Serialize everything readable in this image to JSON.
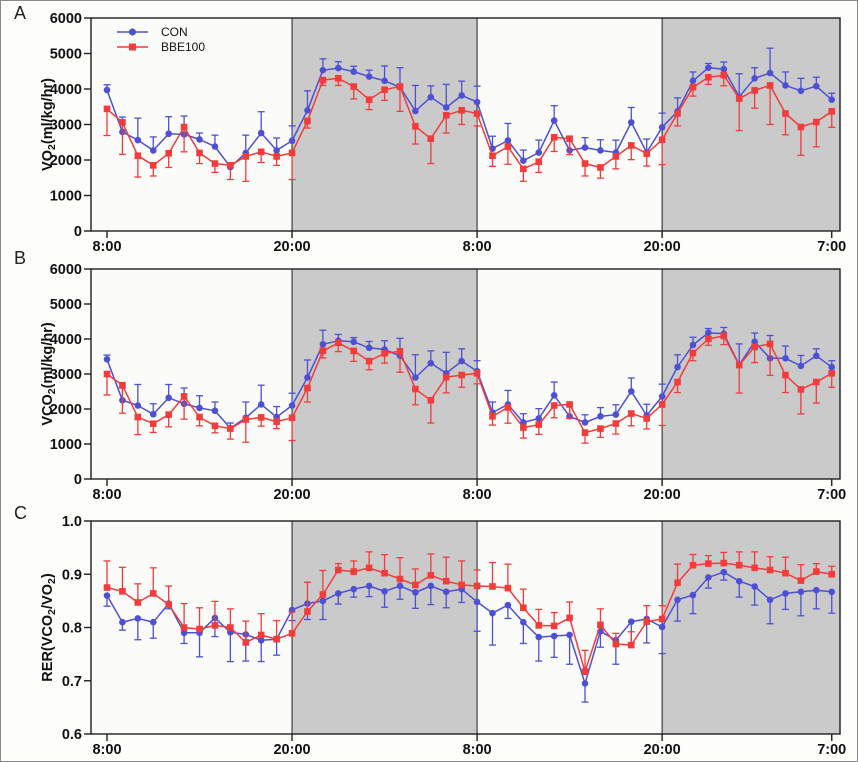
{
  "style": {
    "light_bg": "#fbfbf9",
    "dark_bg": "#cacaca",
    "axis_color": "#1f1f1f",
    "con_color": "#4d50d3",
    "bbe_color": "#f23b3b"
  },
  "chart_data": [
    {
      "type": "line",
      "panel_label": "A",
      "ylabel": "VO2(ml/kg/hr)",
      "ylabel_parts": [
        {
          "text": "VO"
        },
        {
          "text": "2",
          "sub": true
        },
        {
          "text": "(ml/kg/hr)"
        }
      ],
      "xlabel": "",
      "ylim": [
        0,
        6000
      ],
      "yticks": [
        {
          "v": 0,
          "label": "0"
        },
        {
          "v": 1000,
          "label": "1000"
        },
        {
          "v": 2000,
          "label": "2000"
        },
        {
          "v": 3000,
          "label": "3000"
        },
        {
          "v": 4000,
          "label": "4000"
        },
        {
          "v": 5000,
          "label": "5000"
        },
        {
          "v": 6000,
          "label": "6000"
        }
      ],
      "xticks": [
        {
          "hour": 0,
          "label": "8:00"
        },
        {
          "hour": 12,
          "label": "20:00"
        },
        {
          "hour": 24,
          "label": "8:00"
        },
        {
          "hour": 36,
          "label": "20:00"
        },
        {
          "hour": 47,
          "label": "7:00"
        }
      ],
      "hours_total": 47,
      "dark_periods": [
        [
          12,
          24
        ],
        [
          36,
          48
        ]
      ],
      "legend": {
        "show": true,
        "position": "top-left",
        "entries": [
          "CON",
          "BBE100"
        ]
      },
      "series": [
        {
          "name": "CON",
          "marker": "circle",
          "err_dir": "up",
          "values": [
            3970,
            2790,
            2560,
            2270,
            2740,
            2720,
            2580,
            2380,
            1800,
            2200,
            2760,
            2270,
            2540,
            3400,
            4530,
            4590,
            4490,
            4350,
            4230,
            4050,
            3380,
            3770,
            3480,
            3820,
            3630,
            2320,
            2550,
            1980,
            2210,
            3110,
            2270,
            2350,
            2270,
            2210,
            3060,
            2210,
            2920,
            3370,
            4230,
            4600,
            4560,
            3780,
            4300,
            4450,
            4100,
            3950,
            4080,
            3700
          ],
          "err": [
            150,
            420,
            620,
            380,
            480,
            520,
            180,
            320,
            120,
            500,
            600,
            350,
            420,
            550,
            320,
            180,
            150,
            180,
            420,
            550,
            720,
            320,
            650,
            400,
            450,
            350,
            480,
            300,
            350,
            420,
            380,
            280,
            300,
            350,
            420,
            380,
            400,
            380,
            250,
            120,
            200,
            650,
            300,
            700,
            380,
            350,
            250,
            180
          ]
        },
        {
          "name": "BBE100",
          "marker": "square",
          "err_dir": "down",
          "values": [
            3440,
            3060,
            2120,
            1850,
            2190,
            2930,
            2200,
            1900,
            1850,
            2100,
            2230,
            2100,
            2200,
            3100,
            4250,
            4300,
            4070,
            3700,
            3980,
            4070,
            2950,
            2600,
            3260,
            3400,
            3310,
            2120,
            2380,
            1750,
            1950,
            2640,
            2600,
            1900,
            1790,
            2100,
            2410,
            2180,
            2570,
            3310,
            4050,
            4330,
            4390,
            3730,
            3960,
            4100,
            3310,
            2930,
            3070,
            3370
          ],
          "err": [
            750,
            900,
            600,
            300,
            400,
            700,
            300,
            250,
            400,
            700,
            300,
            250,
            750,
            200,
            150,
            200,
            350,
            280,
            300,
            700,
            500,
            700,
            500,
            400,
            350,
            300,
            500,
            350,
            300,
            400,
            450,
            350,
            300,
            350,
            400,
            350,
            700,
            350,
            250,
            200,
            300,
            900,
            500,
            1100,
            600,
            800,
            700,
            450
          ]
        }
      ]
    },
    {
      "type": "line",
      "panel_label": "B",
      "ylabel": "VCO2(ml/kg/hr)",
      "ylabel_parts": [
        {
          "text": "VCO"
        },
        {
          "text": "2",
          "sub": true
        },
        {
          "text": "(ml/kg/hr)"
        }
      ],
      "xlabel": "",
      "ylim": [
        0,
        6000
      ],
      "yticks": [
        {
          "v": 0,
          "label": "0"
        },
        {
          "v": 1000,
          "label": "1000"
        },
        {
          "v": 2000,
          "label": "2000"
        },
        {
          "v": 3000,
          "label": "3000"
        },
        {
          "v": 4000,
          "label": "4000"
        },
        {
          "v": 5000,
          "label": "5000"
        },
        {
          "v": 6000,
          "label": "6000"
        }
      ],
      "xticks": [
        {
          "hour": 0,
          "label": "8:00"
        },
        {
          "hour": 12,
          "label": "20:00"
        },
        {
          "hour": 24,
          "label": "8:00"
        },
        {
          "hour": 36,
          "label": "20:00"
        },
        {
          "hour": 47,
          "label": "7:00"
        }
      ],
      "hours_total": 47,
      "dark_periods": [
        [
          12,
          24
        ],
        [
          36,
          48
        ]
      ],
      "legend": {
        "show": false
      },
      "series": [
        {
          "name": "CON",
          "marker": "circle",
          "err_dir": "up",
          "values": [
            3420,
            2250,
            2100,
            1850,
            2320,
            2150,
            2030,
            1950,
            1450,
            1750,
            2130,
            1770,
            2100,
            2900,
            3850,
            3950,
            3920,
            3750,
            3700,
            3520,
            2900,
            3310,
            3020,
            3370,
            3080,
            1900,
            2130,
            1615,
            1730,
            2390,
            1790,
            1615,
            1790,
            1840,
            2505,
            1815,
            2360,
            3200,
            3830,
            4180,
            4150,
            3260,
            3920,
            3450,
            3450,
            3230,
            3520,
            3200
          ],
          "err": [
            120,
            350,
            600,
            300,
            380,
            450,
            350,
            250,
            150,
            450,
            550,
            300,
            350,
            500,
            400,
            180,
            120,
            180,
            250,
            500,
            650,
            350,
            600,
            350,
            300,
            300,
            400,
            250,
            280,
            380,
            300,
            220,
            250,
            280,
            380,
            320,
            350,
            350,
            220,
            120,
            180,
            600,
            250,
            650,
            350,
            300,
            200,
            180
          ]
        },
        {
          "name": "BBE100",
          "marker": "square",
          "err_dir": "down",
          "values": [
            3000,
            2680,
            1770,
            1580,
            1840,
            2360,
            1770,
            1520,
            1440,
            1700,
            1760,
            1640,
            1750,
            2600,
            3660,
            3890,
            3660,
            3370,
            3590,
            3650,
            2570,
            2250,
            2910,
            2970,
            3020,
            1790,
            2045,
            1470,
            1555,
            2100,
            2130,
            1325,
            1440,
            1585,
            1870,
            1730,
            2130,
            2770,
            3600,
            4000,
            4090,
            3255,
            3775,
            3860,
            2970,
            2560,
            2770,
            3020
          ],
          "err": [
            600,
            800,
            500,
            250,
            350,
            650,
            250,
            200,
            300,
            650,
            250,
            200,
            650,
            400,
            200,
            250,
            300,
            250,
            280,
            600,
            450,
            650,
            450,
            350,
            300,
            250,
            450,
            300,
            280,
            350,
            400,
            300,
            250,
            300,
            350,
            300,
            600,
            300,
            220,
            180,
            250,
            800,
            450,
            900,
            500,
            700,
            600,
            400
          ]
        }
      ]
    },
    {
      "type": "line",
      "panel_label": "C",
      "ylabel": "RER(VCO2/VO2)",
      "ylabel_parts": [
        {
          "text": "RER(VCO"
        },
        {
          "text": "2",
          "sub": true
        },
        {
          "text": "/VO"
        },
        {
          "text": "2",
          "sub": true
        },
        {
          "text": ")"
        }
      ],
      "xlabel": "",
      "ylim": [
        0.6,
        1.0
      ],
      "yticks": [
        {
          "v": 0.6,
          "label": "0.6"
        },
        {
          "v": 0.7,
          "label": "0.7"
        },
        {
          "v": 0.8,
          "label": "0.8"
        },
        {
          "v": 0.9,
          "label": "0.9"
        },
        {
          "v": 1.0,
          "label": "1.0"
        }
      ],
      "xticks": [
        {
          "hour": 0,
          "label": "8:00"
        },
        {
          "hour": 12,
          "label": "20:00"
        },
        {
          "hour": 24,
          "label": "8:00"
        },
        {
          "hour": 36,
          "label": "20:00"
        },
        {
          "hour": 47,
          "label": "7:00"
        }
      ],
      "hours_total": 47,
      "dark_periods": [
        [
          12,
          24
        ],
        [
          36,
          48
        ]
      ],
      "legend": {
        "show": false
      },
      "series": [
        {
          "name": "CON",
          "marker": "circle",
          "err_dir": "down",
          "values": [
            0.86,
            0.81,
            0.817,
            0.81,
            0.845,
            0.79,
            0.79,
            0.818,
            0.791,
            0.787,
            0.776,
            0.778,
            0.833,
            0.845,
            0.85,
            0.864,
            0.872,
            0.878,
            0.868,
            0.878,
            0.866,
            0.878,
            0.867,
            0.872,
            0.848,
            0.827,
            0.842,
            0.81,
            0.782,
            0.784,
            0.786,
            0.695,
            0.793,
            0.776,
            0.811,
            0.816,
            0.801,
            0.852,
            0.861,
            0.894,
            0.904,
            0.887,
            0.877,
            0.852,
            0.864,
            0.867,
            0.87,
            0.867
          ],
          "err": [
            0.02,
            0.015,
            0.04,
            0.03,
            0.01,
            0.02,
            0.045,
            0.035,
            0.055,
            0.05,
            0.04,
            0.03,
            0.02,
            0.03,
            0.035,
            0.02,
            0.015,
            0.02,
            0.03,
            0.025,
            0.03,
            0.035,
            0.03,
            0.025,
            0.055,
            0.06,
            0.025,
            0.04,
            0.045,
            0.04,
            0.055,
            0.035,
            0.03,
            0.045,
            0.04,
            0.045,
            0.05,
            0.04,
            0.035,
            0.02,
            0.015,
            0.03,
            0.035,
            0.045,
            0.03,
            0.045,
            0.035,
            0.04
          ]
        },
        {
          "name": "BBE100",
          "marker": "square",
          "err_dir": "up",
          "values": [
            0.875,
            0.868,
            0.847,
            0.864,
            0.843,
            0.8,
            0.797,
            0.804,
            0.8,
            0.772,
            0.786,
            0.778,
            0.789,
            0.83,
            0.862,
            0.908,
            0.905,
            0.912,
            0.902,
            0.891,
            0.88,
            0.898,
            0.887,
            0.88,
            0.878,
            0.877,
            0.874,
            0.837,
            0.804,
            0.803,
            0.818,
            0.717,
            0.805,
            0.769,
            0.767,
            0.811,
            0.816,
            0.884,
            0.917,
            0.92,
            0.921,
            0.917,
            0.912,
            0.908,
            0.902,
            0.888,
            0.905,
            0.9
          ],
          "err": [
            0.05,
            0.045,
            0.035,
            0.048,
            0.035,
            0.045,
            0.04,
            0.045,
            0.035,
            0.04,
            0.04,
            0.035,
            0.04,
            0.055,
            0.045,
            0.012,
            0.02,
            0.03,
            0.035,
            0.04,
            0.03,
            0.04,
            0.045,
            0.045,
            0.03,
            0.045,
            0.045,
            0.035,
            0.03,
            0.025,
            0.03,
            0.04,
            0.03,
            0.02,
            0.025,
            0.03,
            0.025,
            0.035,
            0.02,
            0.015,
            0.02,
            0.025,
            0.03,
            0.025,
            0.03,
            0.03,
            0.015,
            0.015
          ]
        }
      ]
    }
  ]
}
